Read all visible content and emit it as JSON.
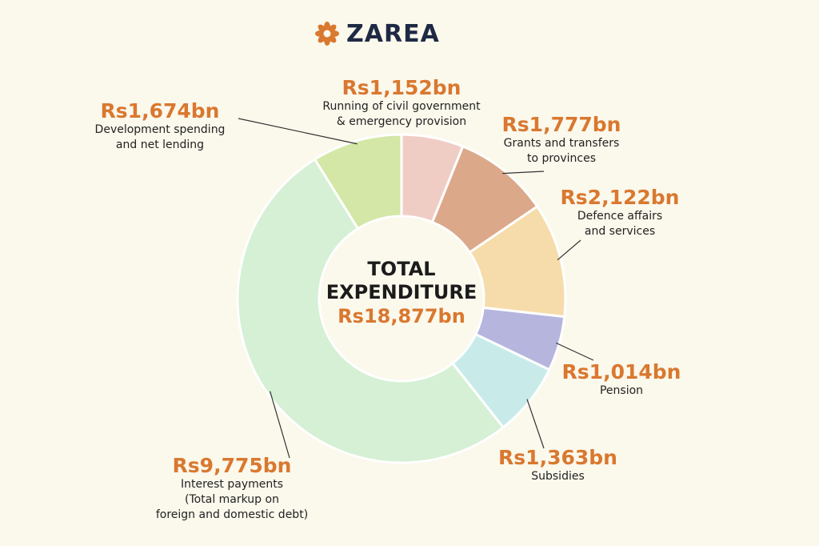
{
  "brand": {
    "name": "ZAREA",
    "logo_icon": "gear-flower-icon",
    "accent": "#d9782f",
    "text_color": "#1e2a44"
  },
  "center": {
    "line1": "TOTAL",
    "line2": "EXPENDITURE",
    "total": "Rs18,877bn"
  },
  "chart_data": {
    "type": "pie",
    "unit": "Rs bn",
    "total": 18877,
    "slices": [
      {
        "label": "Running of civil government\n& emergency provision",
        "value": 1152,
        "value_label": "Rs1,152bn",
        "color": "#f0cdc4"
      },
      {
        "label": "Grants and transfers\nto provinces",
        "value": 1777,
        "value_label": "Rs1,777bn",
        "color": "#dba98a"
      },
      {
        "label": "Defence affairs\nand services",
        "value": 2122,
        "value_label": "Rs2,122bn",
        "color": "#f6dcaa"
      },
      {
        "label": "Pension",
        "value": 1014,
        "value_label": "Rs1,014bn",
        "color": "#b6b5dd"
      },
      {
        "label": "Subsidies",
        "value": 1363,
        "value_label": "Rs1,363bn",
        "color": "#c8ebea"
      },
      {
        "label": "Interest payments\n(Total markup on\nforeign and domestic debt)",
        "value": 9775,
        "value_label": "Rs9,775bn",
        "color": "#d5f0d4"
      },
      {
        "label": "Development spending\nand net lending",
        "value": 1674,
        "value_label": "Rs1,674bn",
        "color": "#d4e7a6"
      }
    ]
  }
}
